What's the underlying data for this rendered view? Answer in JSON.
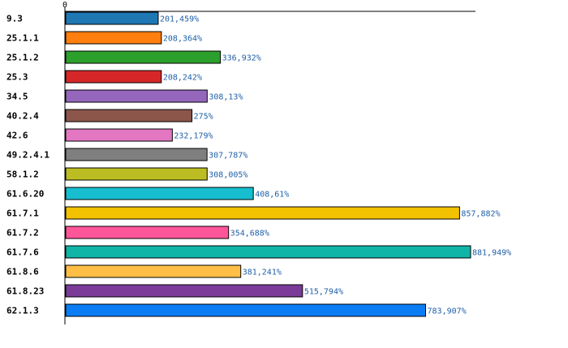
{
  "chart_data": {
    "type": "bar",
    "orientation": "horizontal",
    "title": "",
    "xlabel": "",
    "ylabel": "",
    "x_tick_labels": [
      "0"
    ],
    "xlim": [
      0,
      881.949
    ],
    "grid": false,
    "legend": "none",
    "categories": [
      "9.3",
      "25.1.1",
      "25.1.2",
      "25.3",
      "34.5",
      "40.2.4",
      "42.6",
      "49.2.4.1",
      "58.1.2",
      "61.6.20",
      "61.7.1",
      "61.7.2",
      "61.7.6",
      "61.8.6",
      "61.8.23",
      "62.1.3"
    ],
    "values": [
      201.459,
      208.364,
      336.932,
      208.242,
      308.13,
      275,
      232.179,
      307.787,
      308.005,
      408.61,
      857.882,
      354.688,
      881.949,
      381.241,
      515.794,
      783.907
    ],
    "value_labels": [
      "201,459%",
      "208,364%",
      "336,932%",
      "208,242%",
      "308,13%",
      "275%",
      "232,179%",
      "307,787%",
      "308,005%",
      "408,61%",
      "857,882%",
      "354,688%",
      "881,949%",
      "381,241%",
      "515,794%",
      "783,907%"
    ],
    "colors": [
      "#1f77b4",
      "#ff7f0e",
      "#2ca02c",
      "#d62728",
      "#9467bd",
      "#8c564b",
      "#e377c2",
      "#7f7f7f",
      "#bcbd22",
      "#17becf",
      "#f2c200",
      "#ff5599",
      "#10b5a8",
      "#ffbf47",
      "#7b3b98",
      "#0a7df5"
    ],
    "value_label_color": "#2060a8",
    "axis_color": "#000000",
    "bar_outline_color": "#000000"
  }
}
